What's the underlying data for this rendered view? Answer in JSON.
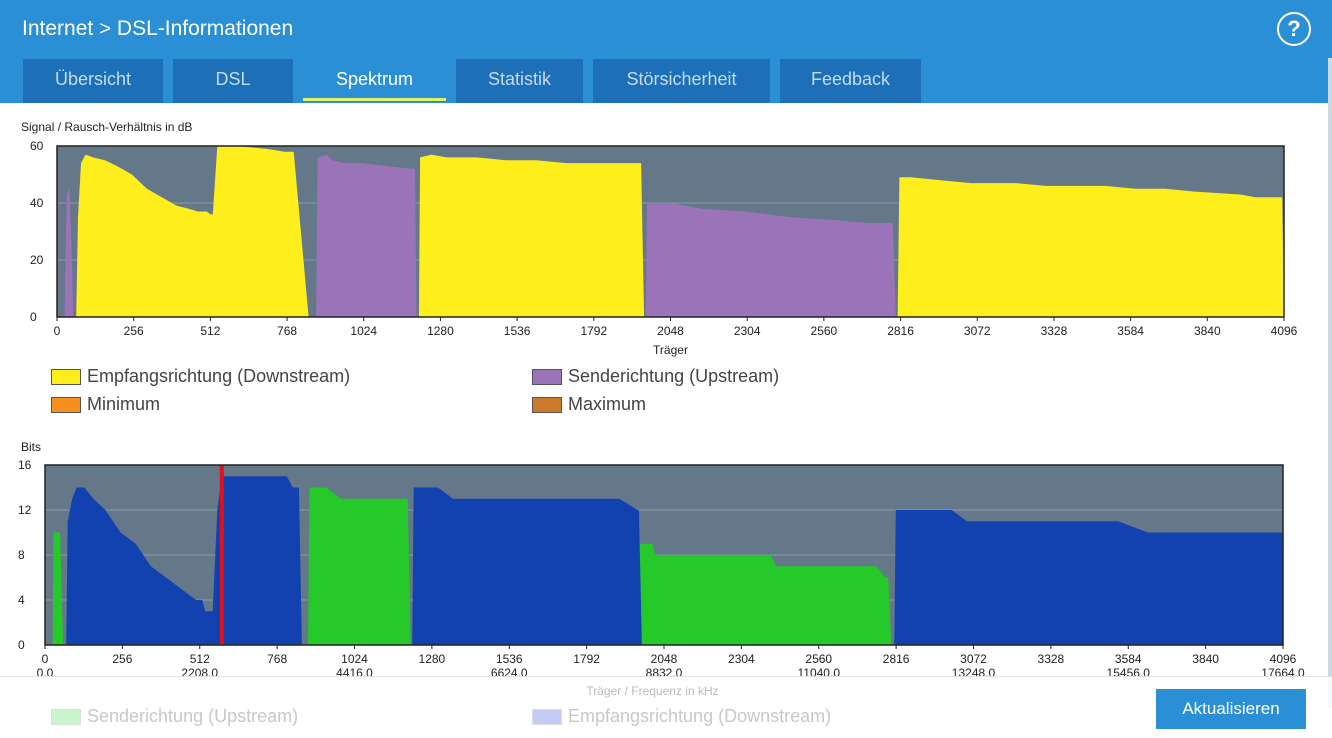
{
  "breadcrumb": {
    "parent": "Internet",
    "separator": ">",
    "current": "DSL-Informationen"
  },
  "help_label": "?",
  "tabs": [
    {
      "label": "Übersicht",
      "active": false
    },
    {
      "label": "DSL",
      "active": false
    },
    {
      "label": "Spektrum",
      "active": true
    },
    {
      "label": "Statistik",
      "active": false
    },
    {
      "label": "Störsicherheit",
      "active": false
    },
    {
      "label": "Feedback",
      "active": false
    }
  ],
  "colors": {
    "header": "#2b8fd6",
    "tab": "#1d6fb8",
    "plot_bg": "#64788a",
    "downstream_snr": "#fdee1c",
    "upstream_snr": "#9a73b8",
    "upstream_bits": "#25c92a",
    "downstream_bits": "#1242b0",
    "marker": "#e0101c"
  },
  "snr_legend": [
    {
      "label": "Empfangsrichtung (Downstream)",
      "color": "#fdee1c"
    },
    {
      "label": "Senderichtung (Upstream)",
      "color": "#9a73b8"
    },
    {
      "label": "Minimum",
      "color": "#f5901e"
    },
    {
      "label": "Maximum",
      "color": "#cc7a2a"
    }
  ],
  "bits_legend": [
    {
      "label": "Senderichtung (Upstream)",
      "color": "#c8f5cc"
    },
    {
      "label": "Empfangsrichtung (Downstream)",
      "color": "#c4ccf5"
    }
  ],
  "update_button": "Aktualisieren",
  "chart_data": [
    {
      "type": "area",
      "ylabel": "Signal / Rausch-Verhältnis in dB",
      "xlabel": "Träger",
      "xlim": [
        0,
        4096
      ],
      "ylim": [
        0,
        60
      ],
      "yticks": [
        0,
        20,
        40,
        60
      ],
      "xticks": [
        0,
        256,
        512,
        768,
        1024,
        1280,
        1536,
        1792,
        2048,
        2304,
        2560,
        2816,
        3072,
        3328,
        3584,
        3840,
        4096
      ],
      "grid": true,
      "series": [
        {
          "name": "Empfangsrichtung (Downstream)",
          "segments": [
            [
              [
                64,
                0
              ],
              [
                70,
                35
              ],
              [
                80,
                54
              ],
              [
                95,
                57
              ],
              [
                120,
                56
              ],
              [
                160,
                55
              ],
              [
                200,
                53
              ],
              [
                250,
                50
              ],
              [
                300,
                45
              ],
              [
                350,
                42
              ],
              [
                400,
                39
              ],
              [
                440,
                38
              ],
              [
                470,
                37
              ],
              [
                500,
                37
              ],
              [
                512,
                36
              ],
              [
                520,
                36
              ],
              [
                535,
                60
              ],
              [
                600,
                60
              ],
              [
                700,
                59
              ],
              [
                760,
                58
              ],
              [
                790,
                58
              ],
              [
                840,
                0
              ]
            ],
            [
              [
                1208,
                0
              ],
              [
                1212,
                56
              ],
              [
                1250,
                57
              ],
              [
                1300,
                56
              ],
              [
                1400,
                56
              ],
              [
                1500,
                55
              ],
              [
                1600,
                55
              ],
              [
                1700,
                54
              ],
              [
                1950,
                54
              ],
              [
                1960,
                0
              ]
            ],
            [
              [
                2806,
                0
              ],
              [
                2812,
                49
              ],
              [
                2850,
                49
              ],
              [
                2950,
                48
              ],
              [
                3050,
                47
              ],
              [
                3200,
                47
              ],
              [
                3300,
                46
              ],
              [
                3400,
                46
              ],
              [
                3500,
                46
              ],
              [
                3600,
                45
              ],
              [
                3700,
                45
              ],
              [
                3800,
                44
              ],
              [
                3950,
                43
              ],
              [
                4000,
                42
              ],
              [
                4090,
                42
              ],
              [
                4096,
                0
              ]
            ]
          ]
        },
        {
          "name": "Senderichtung (Upstream)",
          "segments": [
            [
              [
                25,
                0
              ],
              [
                32,
                43
              ],
              [
                42,
                45
              ],
              [
                55,
                0
              ]
            ],
            [
              [
                865,
                0
              ],
              [
                870,
                56
              ],
              [
                900,
                57
              ],
              [
                920,
                55
              ],
              [
                960,
                54
              ],
              [
                1020,
                54
              ],
              [
                1100,
                53
              ],
              [
                1180,
                52
              ],
              [
                1195,
                52
              ],
              [
                1200,
                0
              ]
            ],
            [
              [
                1965,
                0
              ],
              [
                1970,
                40
              ],
              [
                2050,
                40
              ],
              [
                2150,
                38
              ],
              [
                2300,
                37
              ],
              [
                2450,
                35
              ],
              [
                2600,
                34
              ],
              [
                2700,
                33
              ],
              [
                2790,
                33
              ],
              [
                2800,
                0
              ]
            ]
          ]
        }
      ]
    },
    {
      "type": "area",
      "ylabel": "Bits",
      "xlabel": "Träger / Frequenz in kHz",
      "xlim": [
        0,
        4096
      ],
      "ylim": [
        0,
        16
      ],
      "yticks": [
        0,
        4,
        8,
        12,
        16
      ],
      "xticks": [
        0,
        256,
        512,
        768,
        1024,
        1280,
        1536,
        1792,
        2048,
        2304,
        2560,
        2816,
        3072,
        3328,
        3584,
        3840,
        4096
      ],
      "xticks_khz": [
        "0.0",
        "",
        "2208.0",
        "",
        "4416.0",
        "",
        "6624.0",
        "",
        "8832.0",
        "",
        "11040.0",
        "",
        "13248.0",
        "",
        "15456.0",
        "",
        "17664.0"
      ],
      "grid": true,
      "marker_x": 585,
      "series": [
        {
          "name": "Senderichtung (Upstream)",
          "segments": [
            [
              [
                25,
                0
              ],
              [
                28,
                10
              ],
              [
                50,
                10
              ],
              [
                60,
                0
              ]
            ],
            [
              [
                870,
                0
              ],
              [
                875,
                14
              ],
              [
                930,
                14
              ],
              [
                980,
                13
              ],
              [
                1180,
                13
              ],
              [
                1200,
                13
              ],
              [
                1210,
                0
              ]
            ],
            [
              [
                1960,
                0
              ],
              [
                1965,
                9
              ],
              [
                2010,
                9
              ],
              [
                2020,
                8
              ],
              [
                2400,
                8
              ],
              [
                2420,
                7
              ],
              [
                2750,
                7
              ],
              [
                2780,
                6
              ],
              [
                2790,
                6
              ],
              [
                2800,
                0
              ]
            ]
          ]
        },
        {
          "name": "Empfangsrichtung (Downstream)",
          "segments": [
            [
              [
                70,
                0
              ],
              [
                75,
                11
              ],
              [
                90,
                13
              ],
              [
                105,
                14
              ],
              [
                130,
                14
              ],
              [
                160,
                13
              ],
              [
                200,
                12
              ],
              [
                250,
                10
              ],
              [
                300,
                9
              ],
              [
                350,
                7
              ],
              [
                400,
                6
              ],
              [
                450,
                5
              ],
              [
                500,
                4
              ],
              [
                520,
                4
              ],
              [
                530,
                3
              ],
              [
                555,
                3
              ],
              [
                570,
                12
              ],
              [
                585,
                15
              ],
              [
                800,
                15
              ],
              [
                820,
                14
              ],
              [
                840,
                14
              ],
              [
                850,
                0
              ]
            ],
            [
              [
                1215,
                0
              ],
              [
                1220,
                14
              ],
              [
                1270,
                14
              ],
              [
                1300,
                14
              ],
              [
                1350,
                13
              ],
              [
                1700,
                13
              ],
              [
                1900,
                13
              ],
              [
                1960,
                12
              ],
              [
                1965,
                12
              ],
              [
                1975,
                0
              ]
            ],
            [
              [
                2810,
                0
              ],
              [
                2815,
                12
              ],
              [
                2900,
                12
              ],
              [
                3000,
                12
              ],
              [
                3050,
                11
              ],
              [
                3300,
                11
              ],
              [
                3400,
                11
              ],
              [
                3550,
                11
              ],
              [
                3650,
                10
              ],
              [
                4096,
                10
              ],
              [
                4096,
                0
              ]
            ]
          ]
        }
      ]
    }
  ]
}
